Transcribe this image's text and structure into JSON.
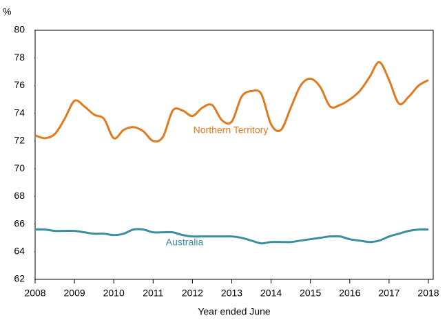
{
  "chart_data": {
    "type": "line",
    "y_axis_label": "%",
    "x_axis_label": "Year ended June",
    "x": [
      2008,
      2008.25,
      2008.5,
      2008.75,
      2009,
      2009.25,
      2009.5,
      2009.75,
      2010,
      2010.25,
      2010.5,
      2010.75,
      2011,
      2011.25,
      2011.5,
      2011.75,
      2012,
      2012.25,
      2012.5,
      2012.75,
      2013,
      2013.25,
      2013.5,
      2013.75,
      2014,
      2014.25,
      2014.5,
      2014.75,
      2015,
      2015.25,
      2015.5,
      2015.75,
      2016,
      2016.25,
      2016.5,
      2016.75,
      2017,
      2017.25,
      2017.5,
      2017.75,
      2018
    ],
    "series": [
      {
        "name": "Northern Territory",
        "color": "#e2791d",
        "values": [
          72.4,
          72.2,
          72.5,
          73.6,
          74.9,
          74.5,
          73.9,
          73.6,
          72.2,
          72.8,
          73.0,
          72.7,
          72.0,
          72.3,
          74.2,
          74.2,
          73.8,
          74.4,
          74.6,
          73.5,
          73.4,
          75.2,
          75.6,
          75.4,
          73.2,
          72.8,
          74.4,
          76.0,
          76.5,
          75.9,
          74.5,
          74.6,
          75.0,
          75.6,
          76.6,
          77.7,
          76.4,
          74.7,
          75.2,
          76.0,
          76.4
        ]
      },
      {
        "name": "Australia",
        "color": "#3a8ea0",
        "values": [
          65.6,
          65.6,
          65.5,
          65.5,
          65.5,
          65.4,
          65.3,
          65.3,
          65.2,
          65.3,
          65.6,
          65.6,
          65.4,
          65.4,
          65.4,
          65.2,
          65.1,
          65.1,
          65.1,
          65.1,
          65.1,
          65.0,
          64.8,
          64.6,
          64.7,
          64.7,
          64.7,
          64.8,
          64.9,
          65.0,
          65.1,
          65.1,
          64.9,
          64.8,
          64.7,
          64.8,
          65.1,
          65.3,
          65.5,
          65.6,
          65.6
        ]
      }
    ],
    "xlim": [
      2008,
      2018
    ],
    "xticks": [
      2008,
      2009,
      2010,
      2011,
      2012,
      2013,
      2014,
      2015,
      2016,
      2017,
      2018
    ],
    "ylim": [
      62,
      80
    ],
    "yticks": [
      62,
      64,
      66,
      68,
      70,
      72,
      74,
      76,
      78,
      80
    ],
    "grid": false
  }
}
